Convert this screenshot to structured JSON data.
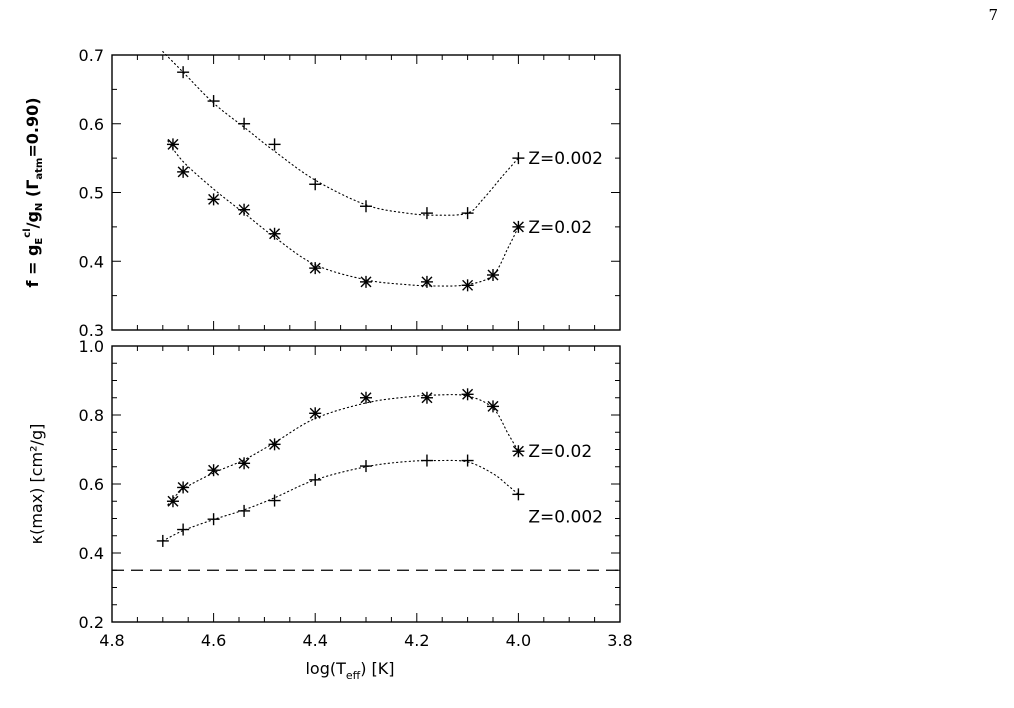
{
  "page_number": "7",
  "chart_data": [
    {
      "type": "scatter",
      "panel": "top",
      "ylabel": "f = g_E^cl/g_N   (Γ_atm=0.90)",
      "ylim": [
        0.3,
        0.7
      ],
      "xlim": [
        4.8,
        3.8
      ],
      "yticks": [
        "0.3",
        "0.4",
        "0.5",
        "0.6",
        "0.7"
      ],
      "series": [
        {
          "name": "Z=0.002",
          "marker": "plus",
          "x": [
            4.66,
            4.6,
            4.54,
            4.48,
            4.4,
            4.3,
            4.18,
            4.1,
            4.0
          ],
          "y": [
            0.675,
            0.633,
            0.6,
            0.57,
            0.512,
            0.48,
            0.47,
            0.47,
            0.55
          ],
          "fit": {
            "x": [
              4.7,
              4.66,
              4.6,
              4.54,
              4.48,
              4.4,
              4.3,
              4.22,
              4.16,
              4.1,
              4.07,
              4.03,
              4.0
            ],
            "y": [
              0.705,
              0.675,
              0.63,
              0.595,
              0.56,
              0.518,
              0.482,
              0.47,
              0.467,
              0.47,
              0.49,
              0.525,
              0.55
            ]
          }
        },
        {
          "name": "Z=0.02",
          "marker": "asterisk",
          "x": [
            4.68,
            4.66,
            4.6,
            4.54,
            4.48,
            4.4,
            4.3,
            4.18,
            4.1,
            4.05,
            4.0
          ],
          "y": [
            0.57,
            0.53,
            0.49,
            0.475,
            0.44,
            0.39,
            0.37,
            0.37,
            0.365,
            0.38,
            0.45
          ],
          "fit": {
            "x": [
              4.69,
              4.66,
              4.6,
              4.54,
              4.48,
              4.4,
              4.3,
              4.22,
              4.16,
              4.1,
              4.05,
              4.02,
              4.0
            ],
            "y": [
              0.575,
              0.545,
              0.505,
              0.47,
              0.435,
              0.395,
              0.373,
              0.366,
              0.364,
              0.366,
              0.38,
              0.42,
              0.45
            ]
          }
        }
      ]
    },
    {
      "type": "scatter",
      "panel": "bottom",
      "title": "",
      "xlabel": "log(T_eff)        [K]",
      "ylabel": "κ(max)   [cm²/g]",
      "ylim": [
        0.2,
        1.0
      ],
      "xlim": [
        4.8,
        3.8
      ],
      "xticks": [
        "4.8",
        "4.6",
        "4.4",
        "4.2",
        "4.0",
        "3.8"
      ],
      "yticks": [
        "0.2",
        "0.4",
        "0.6",
        "0.8",
        "1.0"
      ],
      "reference_line": {
        "y": 0.35,
        "style": "dashed"
      },
      "series": [
        {
          "name": "Z=0.02",
          "marker": "asterisk",
          "x": [
            4.68,
            4.66,
            4.6,
            4.54,
            4.48,
            4.4,
            4.3,
            4.18,
            4.1,
            4.05,
            4.0
          ],
          "y": [
            0.55,
            0.59,
            0.64,
            0.66,
            0.715,
            0.805,
            0.85,
            0.85,
            0.86,
            0.825,
            0.695
          ],
          "fit": {
            "x": [
              4.69,
              4.66,
              4.6,
              4.54,
              4.48,
              4.4,
              4.3,
              4.22,
              4.16,
              4.1,
              4.05,
              4.02,
              4.0
            ],
            "y": [
              0.54,
              0.585,
              0.632,
              0.67,
              0.72,
              0.79,
              0.835,
              0.852,
              0.858,
              0.855,
              0.82,
              0.745,
              0.695
            ]
          }
        },
        {
          "name": "Z=0.002",
          "marker": "plus",
          "x": [
            4.7,
            4.66,
            4.6,
            4.54,
            4.48,
            4.4,
            4.3,
            4.18,
            4.1,
            4.0
          ],
          "y": [
            0.435,
            0.468,
            0.498,
            0.522,
            0.552,
            0.612,
            0.652,
            0.668,
            0.668,
            0.57
          ],
          "fit": {
            "x": [
              4.7,
              4.66,
              4.6,
              4.54,
              4.48,
              4.4,
              4.3,
              4.22,
              4.16,
              4.1,
              4.05,
              4.02,
              4.0
            ],
            "y": [
              0.435,
              0.465,
              0.497,
              0.525,
              0.56,
              0.612,
              0.65,
              0.665,
              0.668,
              0.664,
              0.63,
              0.595,
              0.57
            ]
          }
        }
      ]
    }
  ]
}
